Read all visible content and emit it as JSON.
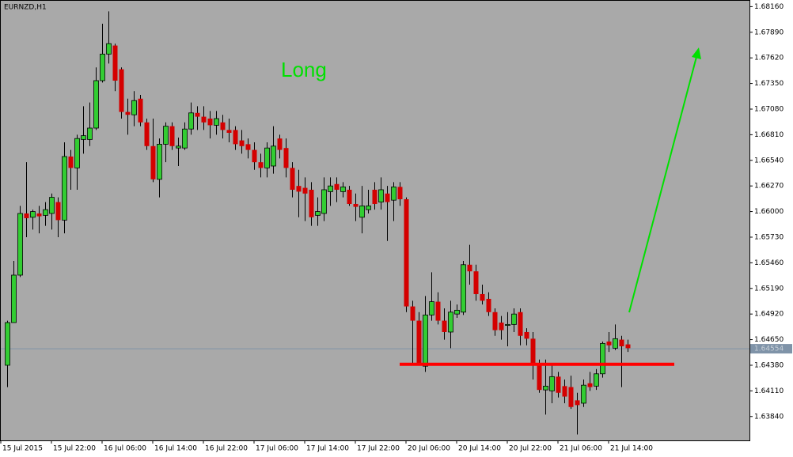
{
  "chart_data": {
    "type": "candlestick",
    "title": "EURNZD,H1",
    "annotation": "Long",
    "up_color": "#32cd32",
    "down_color": "#d40000",
    "background": "#a9a9a9",
    "current_price": 1.64554,
    "support": 1.6439,
    "xlim": [
      -1.125,
      117.25
    ],
    "ylim": [
      1.63588,
      1.6823
    ],
    "xticks": [
      {
        "value": -1,
        "label": "15 Jul 2015"
      },
      {
        "value": 7,
        "label": "15 Jul 22:00"
      },
      {
        "value": 15,
        "label": "16 Jul 06:00"
      },
      {
        "value": 23,
        "label": "16 Jul 14:00"
      },
      {
        "value": 31,
        "label": "16 Jul 22:00"
      },
      {
        "value": 39,
        "label": "17 Jul 06:00"
      },
      {
        "value": 47,
        "label": "17 Jul 14:00"
      },
      {
        "value": 55,
        "label": "17 Jul 22:00"
      },
      {
        "value": 63,
        "label": "20 Jul 06:00"
      },
      {
        "value": 71,
        "label": "20 Jul 14:00"
      },
      {
        "value": 79,
        "label": "20 Jul 22:00"
      },
      {
        "value": 87,
        "label": "21 Jul 06:00"
      },
      {
        "value": 95,
        "label": "21 Jul 14:00"
      }
    ],
    "yticks": [
      {
        "value": 1.6816,
        "label": "1.68160"
      },
      {
        "value": 1.6789,
        "label": "1.67890"
      },
      {
        "value": 1.6762,
        "label": "1.67620"
      },
      {
        "value": 1.6735,
        "label": "1.67350"
      },
      {
        "value": 1.6708,
        "label": "1.67080"
      },
      {
        "value": 1.6681,
        "label": "1.66810"
      },
      {
        "value": 1.6654,
        "label": "1.66540"
      },
      {
        "value": 1.6627,
        "label": "1.66270"
      },
      {
        "value": 1.66,
        "label": "1.66000"
      },
      {
        "value": 1.6573,
        "label": "1.65730"
      },
      {
        "value": 1.6546,
        "label": "1.65460"
      },
      {
        "value": 1.6519,
        "label": "1.65190"
      },
      {
        "value": 1.6492,
        "label": "1.64920"
      },
      {
        "value": 1.6465,
        "label": "1.64650"
      },
      {
        "value": 1.6438,
        "label": "1.64380"
      },
      {
        "value": 1.6411,
        "label": "1.64110"
      },
      {
        "value": 1.6384,
        "label": "1.63840"
      }
    ],
    "open": [
      1.6438,
      1.6483,
      1.6533,
      1.6598,
      1.6594,
      1.6598,
      1.6596,
      1.6598,
      1.661,
      1.6591,
      1.6658,
      1.6646,
      1.6676,
      1.6676,
      1.6688,
      1.6738,
      1.6766,
      1.6775,
      1.675,
      1.6705,
      1.6702,
      1.6719,
      1.6694,
      1.6669,
      1.6634,
      1.6671,
      1.669,
      1.6667,
      1.6667,
      1.6687,
      1.6704,
      1.67,
      1.6698,
      1.6691,
      1.6694,
      1.6686,
      1.6686,
      1.6675,
      1.6671,
      1.6665,
      1.6652,
      1.6646,
      1.6648,
      1.6677,
      1.6667,
      1.6646,
      1.6627,
      1.6625,
      1.6623,
      1.6596,
      1.6598,
      1.6621,
      1.6629,
      1.6621,
      1.6623,
      1.6608,
      1.6594,
      1.6602,
      1.6623,
      1.661,
      1.6619,
      1.6612,
      1.6626,
      1.6613,
      1.65,
      1.6485,
      1.6437,
      1.6491,
      1.6505,
      1.6485,
      1.6473,
      1.6492,
      1.6494,
      1.6544,
      1.6537,
      1.6513,
      1.6508,
      1.6494,
      1.6483,
      1.648,
      1.6481,
      1.6494,
      1.6473,
      1.6466,
      1.644,
      1.6412,
      1.6411,
      1.6426,
      1.6416,
      1.6415,
      1.6401,
      1.6398,
      1.6419,
      1.6416,
      1.6429,
      1.6463,
      1.6456,
      1.6465,
      1.646
    ],
    "high": [
      1.6485,
      1.6548,
      1.6606,
      1.6652,
      1.6602,
      1.6606,
      1.661,
      1.6619,
      1.6615,
      1.6673,
      1.6665,
      1.6681,
      1.6711,
      1.6715,
      1.6752,
      1.6798,
      1.6811,
      1.6777,
      1.6752,
      1.6719,
      1.6727,
      1.6723,
      1.6698,
      1.6698,
      1.6677,
      1.6694,
      1.6694,
      1.6678,
      1.6694,
      1.6715,
      1.6711,
      1.6711,
      1.6706,
      1.6706,
      1.6702,
      1.6698,
      1.669,
      1.6686,
      1.6677,
      1.6673,
      1.6661,
      1.6673,
      1.669,
      1.6681,
      1.6677,
      1.6652,
      1.6644,
      1.6636,
      1.6631,
      1.6615,
      1.6636,
      1.6636,
      1.6636,
      1.6631,
      1.6627,
      1.6619,
      1.6627,
      1.6623,
      1.6631,
      1.6636,
      1.6627,
      1.6631,
      1.6631,
      1.6615,
      1.6506,
      1.6494,
      1.6511,
      1.6536,
      1.6515,
      1.6498,
      1.6506,
      1.6502,
      1.6548,
      1.6565,
      1.6544,
      1.6523,
      1.6515,
      1.6498,
      1.649,
      1.6494,
      1.6498,
      1.6498,
      1.6477,
      1.6473,
      1.6444,
      1.6444,
      1.644,
      1.6431,
      1.6423,
      1.6427,
      1.6409,
      1.6423,
      1.6431,
      1.6434,
      1.6463,
      1.6473,
      1.6481,
      1.6469,
      1.6465
    ],
    "low": [
      1.6415,
      1.6483,
      1.6531,
      1.6573,
      1.6581,
      1.6577,
      1.6585,
      1.6581,
      1.6573,
      1.6577,
      1.6623,
      1.6623,
      1.6661,
      1.6669,
      1.6686,
      1.6736,
      1.6756,
      1.6727,
      1.6698,
      1.6681,
      1.669,
      1.669,
      1.6665,
      1.6631,
      1.6615,
      1.6652,
      1.6665,
      1.6648,
      1.6665,
      1.6681,
      1.6686,
      1.6686,
      1.6677,
      1.6681,
      1.6677,
      1.6673,
      1.6665,
      1.6661,
      1.6656,
      1.6644,
      1.6636,
      1.6636,
      1.664,
      1.6656,
      1.6636,
      1.6615,
      1.6594,
      1.659,
      1.6585,
      1.6585,
      1.659,
      1.6606,
      1.661,
      1.6615,
      1.6606,
      1.659,
      1.6577,
      1.6598,
      1.6602,
      1.6602,
      1.6569,
      1.659,
      1.6606,
      1.6494,
      1.644,
      1.6438,
      1.6431,
      1.6485,
      1.6481,
      1.6465,
      1.6456,
      1.6488,
      1.6491,
      1.6523,
      1.6506,
      1.6502,
      1.649,
      1.6469,
      1.6465,
      1.6458,
      1.6473,
      1.6459,
      1.6459,
      1.6423,
      1.6409,
      1.6386,
      1.6398,
      1.6404,
      1.6398,
      1.6392,
      1.6365,
      1.6394,
      1.6411,
      1.6412,
      1.6425,
      1.6452,
      1.6454,
      1.6415,
      1.6452
    ],
    "close": [
      1.6483,
      1.6533,
      1.6598,
      1.6593,
      1.66,
      1.6595,
      1.6602,
      1.6615,
      1.6591,
      1.6658,
      1.6646,
      1.6677,
      1.668,
      1.6688,
      1.6738,
      1.6766,
      1.6777,
      1.6738,
      1.6705,
      1.6702,
      1.6717,
      1.6694,
      1.6669,
      1.6634,
      1.6671,
      1.669,
      1.6669,
      1.6669,
      1.6687,
      1.6704,
      1.67,
      1.6694,
      1.6691,
      1.6698,
      1.6686,
      1.6683,
      1.6671,
      1.6669,
      1.6665,
      1.6652,
      1.6646,
      1.6667,
      1.6669,
      1.6665,
      1.6646,
      1.6623,
      1.6621,
      1.6619,
      1.6594,
      1.66,
      1.6623,
      1.6627,
      1.6623,
      1.6626,
      1.6608,
      1.6605,
      1.6606,
      1.6606,
      1.6608,
      1.6623,
      1.661,
      1.6626,
      1.6613,
      1.65,
      1.6485,
      1.644,
      1.6491,
      1.6505,
      1.6485,
      1.6473,
      1.6494,
      1.6496,
      1.6544,
      1.6537,
      1.6513,
      1.6506,
      1.6494,
      1.6475,
      1.6475,
      1.6481,
      1.6492,
      1.6469,
      1.6466,
      1.644,
      1.6412,
      1.6416,
      1.6426,
      1.6409,
      1.6405,
      1.6394,
      1.6396,
      1.6417,
      1.6415,
      1.6429,
      1.6461,
      1.6459,
      1.6466,
      1.6458,
      1.6456
    ]
  }
}
